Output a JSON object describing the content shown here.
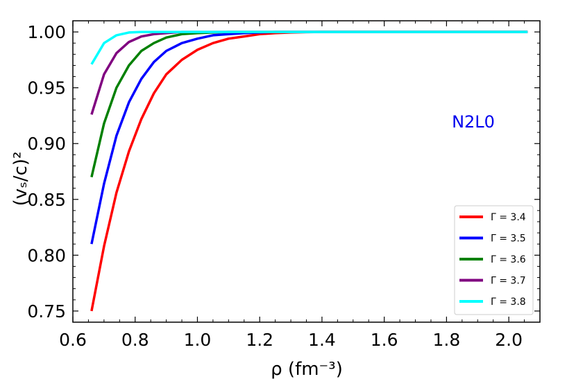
{
  "chart_data": {
    "type": "line",
    "title": "",
    "xlabel": "ρ (fm⁻³)",
    "ylabel": "(vₛ/c)²",
    "xlim": [
      0.6,
      2.1
    ],
    "ylim": [
      0.74,
      1.01
    ],
    "xticks": [
      "0.6",
      "0.8",
      "1.0",
      "1.2",
      "1.4",
      "1.6",
      "1.8",
      "2.0"
    ],
    "yticks": [
      "0.75",
      "0.80",
      "0.85",
      "0.90",
      "0.95",
      "1.00"
    ],
    "annotation": {
      "text": "N2L0",
      "color": "#0000ee"
    },
    "legend": {
      "location": "lower-right"
    },
    "x": [
      0.66,
      0.7,
      0.74,
      0.78,
      0.82,
      0.86,
      0.9,
      0.95,
      1.0,
      1.05,
      1.1,
      1.15,
      1.2,
      1.25,
      1.3,
      1.35,
      1.4,
      1.5,
      1.6,
      1.7,
      1.8,
      1.9,
      2.0,
      2.06
    ],
    "series": [
      {
        "name": "Γ = 3.4",
        "color": "#ff0000",
        "values": [
          0.75,
          0.808,
          0.856,
          0.893,
          0.922,
          0.945,
          0.962,
          0.975,
          0.984,
          0.99,
          0.994,
          0.996,
          0.998,
          0.999,
          0.9995,
          0.9998,
          1.0,
          1.0,
          1.0,
          1.0,
          1.0,
          1.0,
          1.0,
          1.0
        ]
      },
      {
        "name": "Γ = 3.5",
        "color": "#0000ff",
        "values": [
          0.81,
          0.864,
          0.907,
          0.937,
          0.958,
          0.973,
          0.983,
          0.99,
          0.994,
          0.997,
          0.998,
          0.999,
          0.9995,
          1.0,
          1.0,
          1.0,
          1.0,
          1.0,
          1.0,
          1.0,
          1.0,
          1.0,
          1.0,
          1.0
        ]
      },
      {
        "name": "Γ = 3.6",
        "color": "#008000",
        "values": [
          0.87,
          0.918,
          0.95,
          0.97,
          0.983,
          0.99,
          0.995,
          0.998,
          0.999,
          0.9995,
          1.0,
          1.0,
          1.0,
          1.0,
          1.0,
          1.0,
          1.0,
          1.0,
          1.0,
          1.0,
          1.0,
          1.0,
          1.0,
          1.0
        ]
      },
      {
        "name": "Γ = 3.7",
        "color": "#800080",
        "values": [
          0.926,
          0.962,
          0.981,
          0.991,
          0.996,
          0.998,
          0.999,
          1.0,
          1.0,
          1.0,
          1.0,
          1.0,
          1.0,
          1.0,
          1.0,
          1.0,
          1.0,
          1.0,
          1.0,
          1.0,
          1.0,
          1.0,
          1.0,
          1.0
        ]
      },
      {
        "name": "Γ = 3.8",
        "color": "#00ffff",
        "values": [
          0.971,
          0.99,
          0.997,
          0.9995,
          1.0,
          1.0,
          1.0,
          1.0,
          1.0,
          1.0,
          1.0,
          1.0,
          1.0,
          1.0,
          1.0,
          1.0,
          1.0,
          1.0,
          1.0,
          1.0,
          1.0,
          1.0,
          1.0,
          1.0
        ]
      }
    ]
  }
}
